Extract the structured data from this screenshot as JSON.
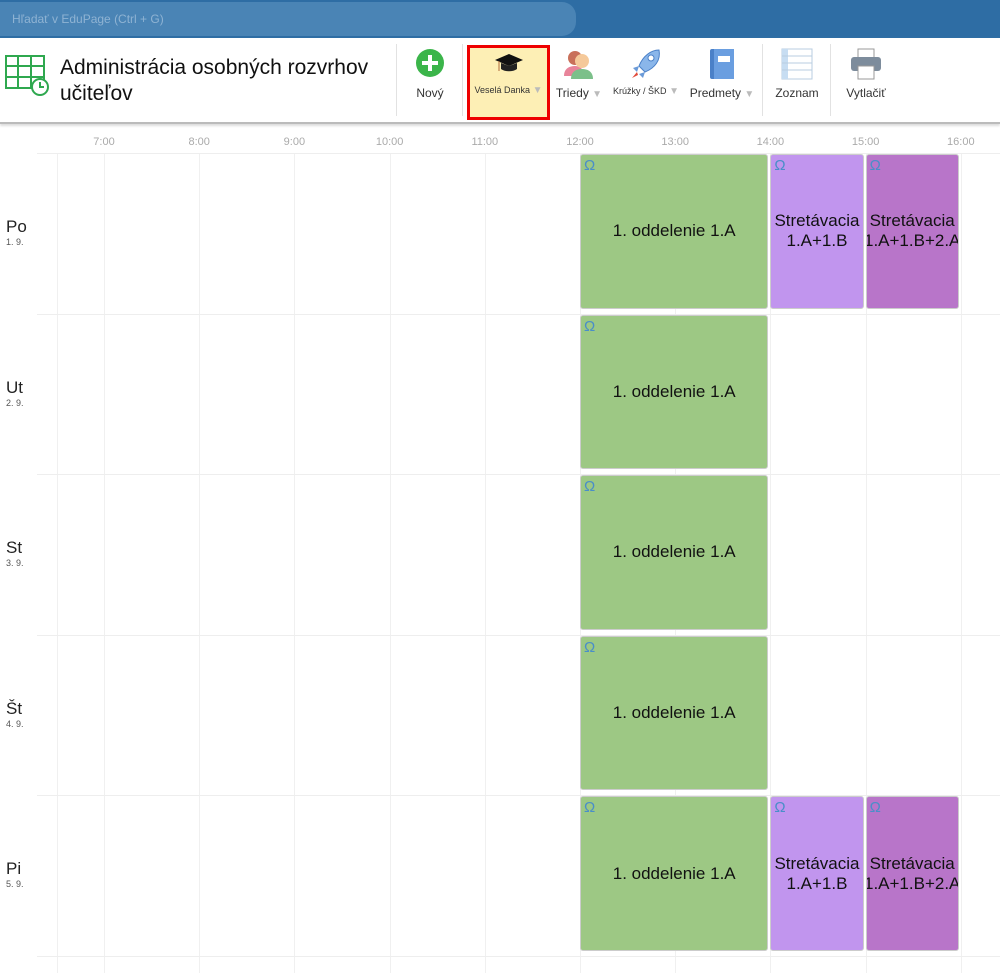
{
  "search": {
    "placeholder": "Hľadať v EduPage (Ctrl + G)"
  },
  "header": {
    "title": "Administrácia osobných rozvrhov učiteľov"
  },
  "toolbar": [
    {
      "label": "Nový",
      "icon": "plus-circle-icon"
    },
    {
      "label": "Veselá Danka",
      "icon": "graduation-cap-icon",
      "dropdown": true,
      "selected": true
    },
    {
      "label": "Triedy",
      "icon": "users-icon",
      "dropdown": true
    },
    {
      "label": "Krúžky / ŠKD",
      "icon": "rocket-icon",
      "dropdown": true
    },
    {
      "label": "Predmety",
      "icon": "book-icon",
      "dropdown": true
    },
    {
      "label": "Zoznam",
      "icon": "list-icon"
    },
    {
      "label": "Vytlačiť",
      "icon": "printer-icon"
    }
  ],
  "hours": [
    "7:00",
    "8:00",
    "9:00",
    "10:00",
    "11:00",
    "12:00",
    "13:00",
    "14:00",
    "15:00",
    "16:00"
  ],
  "days": [
    {
      "name": "Po",
      "date": "1. 9."
    },
    {
      "name": "Ut",
      "date": "2. 9."
    },
    {
      "name": "St",
      "date": "3. 9."
    },
    {
      "name": "Št",
      "date": "4. 9."
    },
    {
      "name": "Pi",
      "date": "5. 9."
    }
  ],
  "colors": {
    "green": "#9dc884",
    "light_purple": "#c195ee",
    "dark_purple": "#b875c9"
  },
  "lessons": [
    {
      "day": 0,
      "start": "12:00",
      "end": "14:00",
      "lines": [
        "1. oddelenie 1.A"
      ],
      "color": "green"
    },
    {
      "day": 0,
      "start": "14:00",
      "end": "15:00",
      "lines": [
        "Stretávacia",
        "1.A+1.B"
      ],
      "color": "light_purple"
    },
    {
      "day": 0,
      "start": "15:00",
      "end": "16:00",
      "lines": [
        "Stretávacia",
        "1.A+1.B+2.A"
      ],
      "color": "dark_purple"
    },
    {
      "day": 1,
      "start": "12:00",
      "end": "14:00",
      "lines": [
        "1. oddelenie 1.A"
      ],
      "color": "green"
    },
    {
      "day": 2,
      "start": "12:00",
      "end": "14:00",
      "lines": [
        "1. oddelenie 1.A"
      ],
      "color": "green"
    },
    {
      "day": 3,
      "start": "12:00",
      "end": "14:00",
      "lines": [
        "1. oddelenie 1.A"
      ],
      "color": "green"
    },
    {
      "day": 4,
      "start": "12:00",
      "end": "14:00",
      "lines": [
        "1. oddelenie 1.A"
      ],
      "color": "green"
    },
    {
      "day": 4,
      "start": "14:00",
      "end": "15:00",
      "lines": [
        "Stretávacia",
        "1.A+1.B"
      ],
      "color": "light_purple"
    },
    {
      "day": 4,
      "start": "15:00",
      "end": "16:00",
      "lines": [
        "Stretávacia",
        "1.A+1.B+2.A"
      ],
      "color": "dark_purple"
    }
  ]
}
